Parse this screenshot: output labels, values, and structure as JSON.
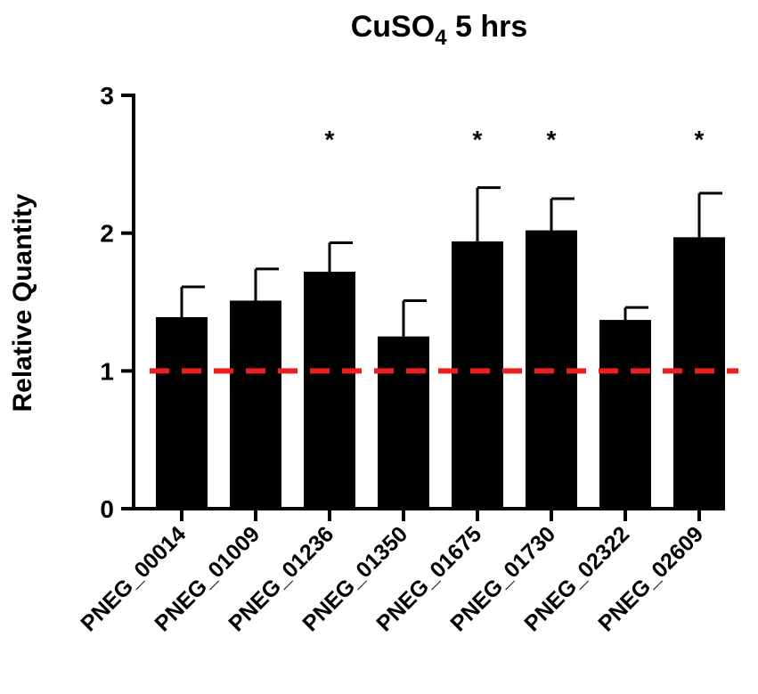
{
  "chart_data": {
    "type": "bar",
    "title": "CuSO",
    "title_subscript": "4",
    "title_suffix": " 5 hrs",
    "xlabel": "",
    "ylabel": "Relative Quantity",
    "ylim": [
      0,
      3
    ],
    "yticks": [
      0,
      1,
      2,
      3
    ],
    "categories": [
      "PNEG_00014",
      "PNEG_01009",
      "PNEG_01236",
      "PNEG_01350",
      "PNEG_01675",
      "PNEG_01730",
      "PNEG_02322",
      "PNEG_02609"
    ],
    "values": [
      1.39,
      1.51,
      1.72,
      1.25,
      1.94,
      2.02,
      1.37,
      1.97
    ],
    "error_upper": [
      1.61,
      1.74,
      1.93,
      1.51,
      2.33,
      2.25,
      1.46,
      2.29
    ],
    "significance": [
      "",
      "",
      "*",
      "",
      "*",
      "*",
      "",
      "*"
    ],
    "reference_line": {
      "value": 1,
      "style": "dashed",
      "color": "#e8201f"
    },
    "bar_color": "#000000",
    "grid": false,
    "legend": "none"
  }
}
